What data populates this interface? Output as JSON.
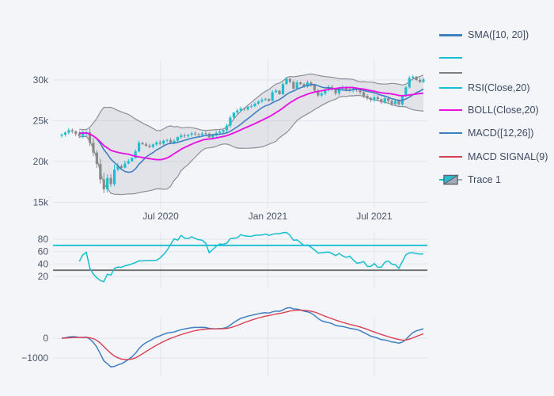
{
  "figure": {
    "kind": "plotly-quantfig",
    "background": "#f3f5f9"
  },
  "colors": {
    "bg": "#f3f5f9",
    "grid": "#e3e7f0",
    "tick_text": "#4b5566",
    "legend_text": "#3e4b63",
    "sma": "#3f7fc1",
    "boll_mid": "#ee0fe4",
    "boll_band_line": "#8b9099",
    "boll_band_fill": "rgba(140,145,155,0.17)",
    "rsi": "#17becf",
    "rsi_upper_line": "#17becf",
    "rsi_lower_line": "#6f6f6f",
    "macd": "#3f7fc1",
    "macd_signal": "#db4052",
    "candle_up": "#1fbecf",
    "candle_down": "#8a8a8a",
    "icon_box_fill": "#a5abb4",
    "icon_box_stroke": "#596273",
    "icon_tri_fill": "#2bbccc"
  },
  "legend": {
    "items": [
      {
        "label": "SMA([10, 20])",
        "type": "line",
        "color": "#3f7fc1",
        "width": 3
      },
      {
        "label": "",
        "type": "line",
        "color": "#17becf",
        "width": 2
      },
      {
        "label": "",
        "type": "line",
        "color": "#7f7f7f",
        "width": 2
      },
      {
        "label": "RSI(Close,20)",
        "type": "line",
        "color": "#17becf",
        "width": 2
      },
      {
        "label": "BOLL(Close,20)",
        "type": "line",
        "color": "#ee0fe4",
        "width": 2
      },
      {
        "label": "MACD([12,26])",
        "type": "line",
        "color": "#3f7fc1",
        "width": 2
      },
      {
        "label": "MACD SIGNAL(9)",
        "type": "line",
        "color": "#db4052",
        "width": 2
      },
      {
        "label": "Trace 1",
        "type": "candlestick"
      }
    ]
  },
  "chart_data": [
    {
      "type": "candlestick",
      "name": "Trace 1",
      "description": "Price candles (approx. weekly closes read from chart) with SMA(10,20) and Bollinger(20,2) overlay",
      "x_ticks": [
        {
          "i": 28.2,
          "label": "Jul 2020"
        },
        {
          "i": 58.7,
          "label": "Jan 2021"
        },
        {
          "i": 89.0,
          "label": "Jul 2021"
        }
      ],
      "y_ticks": [
        {
          "v": 15000,
          "label": "15k"
        },
        {
          "v": 20000,
          "label": "20k"
        },
        {
          "v": 25000,
          "label": "25k"
        },
        {
          "v": 30000,
          "label": "30k"
        }
      ],
      "ylim": [
        14300,
        32500
      ],
      "close": [
        23300,
        23550,
        23850,
        23700,
        23400,
        23150,
        23450,
        23600,
        22300,
        21100,
        19700,
        17800,
        16600,
        18000,
        17250,
        19000,
        19450,
        19250,
        19750,
        20050,
        20450,
        21250,
        22300,
        22150,
        21950,
        21800,
        22100,
        22350,
        22200,
        22550,
        22650,
        22350,
        22550,
        23000,
        23200,
        23150,
        23300,
        23450,
        23350,
        23300,
        23450,
        23400,
        22950,
        23250,
        23500,
        23650,
        23850,
        24400,
        25400,
        26000,
        26250,
        26500,
        26400,
        26700,
        26800,
        27100,
        27350,
        27550,
        27650,
        27450,
        28500,
        28700,
        28250,
        29500,
        30150,
        29750,
        28950,
        29700,
        29500,
        29200,
        29700,
        29350,
        28700,
        28100,
        28350,
        28800,
        29150,
        28900,
        28350,
        28950,
        29100,
        28850,
        28750,
        28950,
        28800,
        28500,
        28050,
        27800,
        27550,
        27900,
        27650,
        27300,
        27750,
        27450,
        27050,
        27400,
        27000,
        28050,
        29100,
        30250,
        30400,
        30000,
        29750,
        30050
      ],
      "studies": {
        "sma_periods": [
          10,
          20
        ],
        "boll": {
          "period": 20,
          "stdev": 2
        }
      }
    },
    {
      "type": "line",
      "name": "RSI(Close,20)",
      "period": 20,
      "upper_band": 70,
      "lower_band": 30,
      "y_ticks": [
        {
          "v": 20,
          "label": "20"
        },
        {
          "v": 40,
          "label": "40"
        },
        {
          "v": 60,
          "label": "60"
        },
        {
          "v": 80,
          "label": "80"
        }
      ],
      "ylim": [
        0,
        92
      ]
    },
    {
      "type": "line",
      "name": "MACD",
      "fast": 12,
      "slow": 26,
      "signal": 9,
      "y_ticks": [
        {
          "v": 0,
          "label": "0"
        },
        {
          "v": -1000,
          "label": "−1000"
        }
      ],
      "ylim": [
        -2100,
        1100
      ]
    }
  ]
}
